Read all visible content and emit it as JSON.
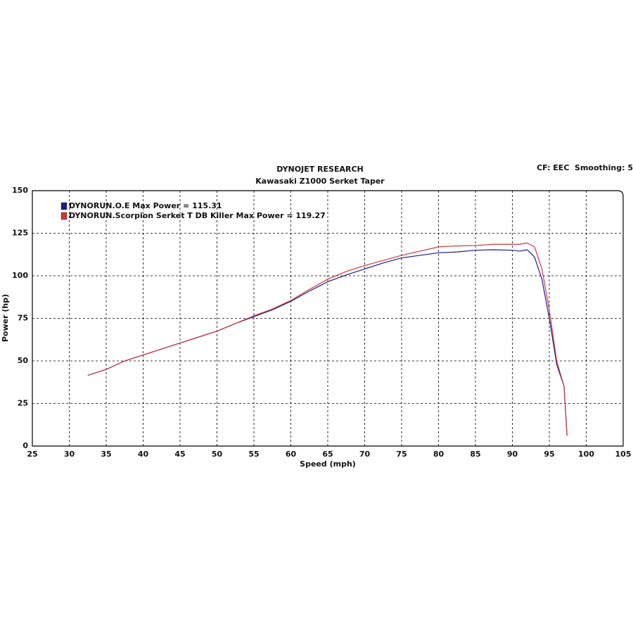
{
  "chart_data": {
    "type": "line",
    "title": "DYNOJET RESEARCH",
    "subtitle": "Kawasaki Z1000 Serket Taper",
    "annotation": "CF: EEC  Smoothing: 5",
    "xlabel": "Speed (mph)",
    "ylabel": "Power (hp)",
    "x": [
      32.5,
      35,
      37.5,
      40,
      42.5,
      45,
      47.5,
      50,
      52.5,
      55,
      57.5,
      60,
      62.5,
      65,
      67.5,
      70,
      72.5,
      75,
      77.5,
      80,
      82.5,
      85,
      87.5,
      90,
      91,
      92,
      93,
      94,
      95,
      96,
      97,
      97.4
    ],
    "series": [
      {
        "name": "DYNORUN.O.E Max Power = 115.31",
        "color": "#1c1c8f",
        "values": [
          41.5,
          45,
          50,
          53.5,
          57,
          60.5,
          64,
          67.5,
          72,
          76,
          80,
          85,
          91,
          96.5,
          100.5,
          104,
          107.5,
          110.5,
          112,
          113.5,
          114,
          115,
          115.3,
          115,
          114.5,
          115.3,
          111,
          98,
          75,
          48,
          35,
          6
        ]
      },
      {
        "name": "DYNORUN.Scorpion Serket T DB Killer Max Power = 119.27",
        "color": "#c83a3a",
        "values": [
          41.5,
          45,
          50,
          53.5,
          57,
          60.5,
          64,
          67.5,
          72,
          76.5,
          80.5,
          85.5,
          92,
          98,
          102.5,
          106,
          109,
          112,
          114.5,
          117,
          117.5,
          117.8,
          118.5,
          118.5,
          118.5,
          119.27,
          117,
          104,
          80,
          50,
          35,
          6
        ]
      }
    ],
    "xlim": [
      25,
      105
    ],
    "xticks": [
      25,
      30,
      35,
      40,
      45,
      50,
      55,
      60,
      65,
      70,
      75,
      80,
      85,
      90,
      95,
      100,
      105
    ],
    "ylim": [
      0,
      150
    ],
    "yticks": [
      0,
      25,
      50,
      75,
      100,
      125,
      150
    ],
    "grid": true
  }
}
